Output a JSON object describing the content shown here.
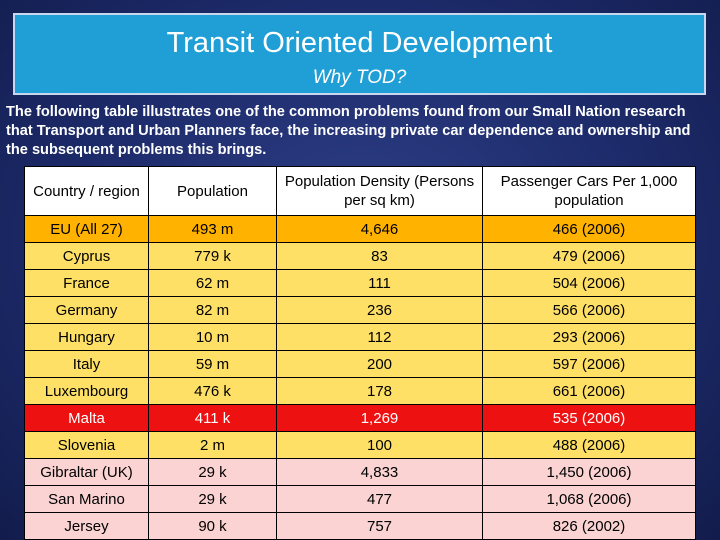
{
  "header": {
    "title": "Transit Oriented Development",
    "subtitle": "Why TOD?"
  },
  "intro": "The following table illustrates one of the common problems found from our Small Nation research that Transport and Urban Planners face, the increasing private car dependence and ownership and the subsequent problems this brings.",
  "table": {
    "headers": [
      "Country / region",
      "Population",
      "Population Density (Persons per sq km)",
      "Passenger Cars Per 1,000 population"
    ],
    "rows": [
      {
        "country": "EU (All 27)",
        "population": "493 m",
        "density": "4,646",
        "cars": "466 (2006)"
      },
      {
        "country": "Cyprus",
        "population": "779 k",
        "density": "83",
        "cars": "479 (2006)"
      },
      {
        "country": "France",
        "population": "62 m",
        "density": "111",
        "cars": "504 (2006)"
      },
      {
        "country": "Germany",
        "population": "82 m",
        "density": "236",
        "cars": "566 (2006)"
      },
      {
        "country": "Hungary",
        "population": "10 m",
        "density": "112",
        "cars": "293 (2006)"
      },
      {
        "country": "Italy",
        "population": "59 m",
        "density": "200",
        "cars": "597 (2006)"
      },
      {
        "country": "Luxembourg",
        "population": "476 k",
        "density": "178",
        "cars": "661 (2006)"
      },
      {
        "country": "Malta",
        "population": "411 k",
        "density": "1,269",
        "cars": "535 (2006)"
      },
      {
        "country": "Slovenia",
        "population": "2 m",
        "density": "100",
        "cars": "488 (2006)"
      },
      {
        "country": "Gibraltar (UK)",
        "population": "29 k",
        "density": "4,833",
        "cars": "1,450 (2006)"
      },
      {
        "country": "San Marino",
        "population": "29 k",
        "density": "477",
        "cars": "1,068 (2006)"
      },
      {
        "country": "Jersey",
        "population": "90 k",
        "density": "757",
        "cars": "826 (2002)"
      }
    ]
  },
  "colors": {
    "title_bg": "#1f9fd6",
    "eu_row": "#ffb200",
    "member_rows": "#ffe066",
    "malta_row": "#ee1111",
    "other_rows": "#fbd3d3"
  }
}
